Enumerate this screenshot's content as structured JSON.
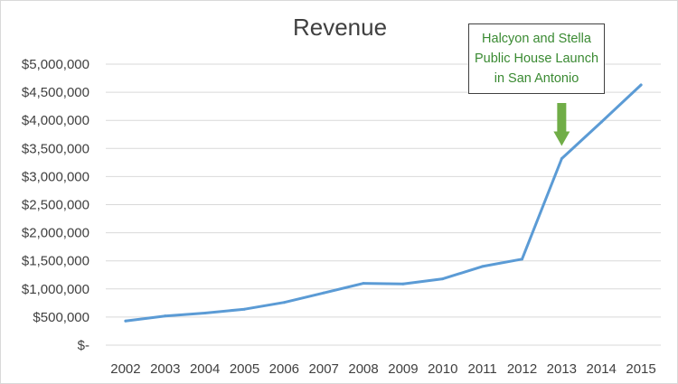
{
  "chart_data": {
    "type": "line",
    "title": "Revenue",
    "xlabel": "",
    "ylabel": "",
    "categories": [
      "2002",
      "2003",
      "2004",
      "2005",
      "2006",
      "2007",
      "2008",
      "2009",
      "2010",
      "2011",
      "2012",
      "2013",
      "2014",
      "2015"
    ],
    "series": [
      {
        "name": "Revenue",
        "color": "#5b9bd5",
        "values": [
          430000,
          520000,
          570000,
          640000,
          760000,
          930000,
          1100000,
          1090000,
          1180000,
          1400000,
          1530000,
          3320000,
          3970000,
          4630000
        ]
      }
    ],
    "ylim": [
      0,
      5000000
    ],
    "yticks": [
      0,
      500000,
      1000000,
      1500000,
      2000000,
      2500000,
      3000000,
      3500000,
      4000000,
      4500000,
      5000000
    ],
    "ytick_labels": [
      "$-",
      "$500,000",
      "$1,000,000",
      "$1,500,000",
      "$2,000,000",
      "$2,500,000",
      "$3,000,000",
      "$3,500,000",
      "$4,000,000",
      "$4,500,000",
      "$5,000,000"
    ],
    "grid": true,
    "gridline_color": "#d9d9d9",
    "arrow_color": "#70ad47",
    "annotation": {
      "lines": [
        "Halcyon and Stella",
        "Public House Launch",
        "in San Antonio"
      ],
      "points_to": "2013"
    }
  }
}
